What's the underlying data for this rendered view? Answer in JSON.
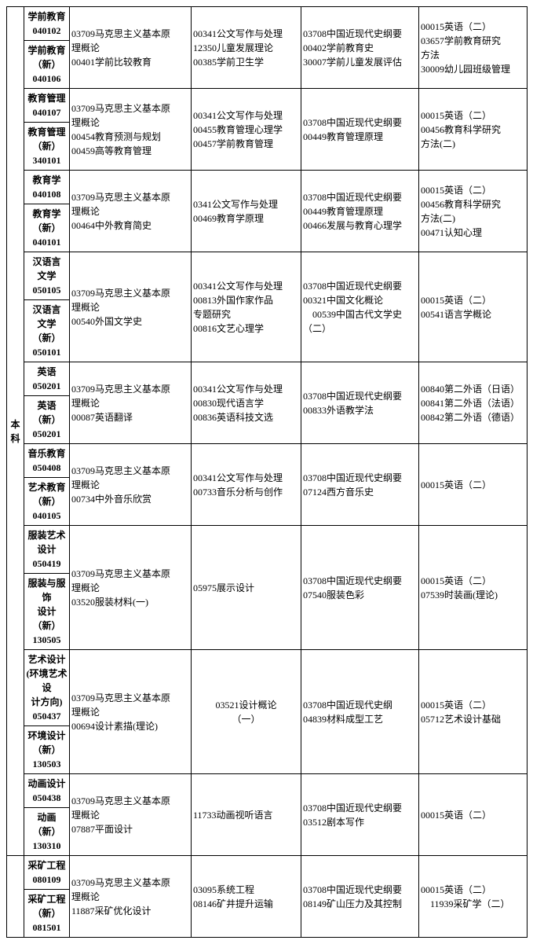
{
  "level1": "本科",
  "rows": [
    {
      "majors": [
        "学前教育\n040102",
        "学前教育\n（新）\n040106"
      ],
      "col2": "03709马克思主义基本原\n理概论\n00401学前比较教育",
      "col3": "00341公文写作与处理\n12350儿童发展理论\n00385学前卫生学",
      "col4": "03708中国近现代史纲要\n00402学前教育史\n30007学前儿童发展评估",
      "col5": "00015英语（二）\n03657学前教育研究\n方法\n30009幼儿园班级管理"
    },
    {
      "majors": [
        "教育管理\n040107",
        "教育管理\n（新）\n340101"
      ],
      "col2": "03709马克思主义基本原\n理概论\n00454教育预测与规划\n00459高等教育管理",
      "col3": "00341公文写作与处理\n00455教育管理心理学\n00457学前教育管理",
      "col4": "03708中国近现代史纲要\n00449教育管理原理",
      "col5": "00015英语（二）\n00456教育科学研究\n方法(二)"
    },
    {
      "majors": [
        "教育学\n040108",
        "教育学\n（新）\n040101"
      ],
      "col2": "03709马克思主义基本原\n理概论\n00464中外教育简史",
      "col3": "0341公文写作与处理\n00469教育学原理",
      "col4": "03708中国近现代史纲要\n00449教育管理原理\n00466发展与教育心理学",
      "col5": "00015英语（二）\n00456教育科学研究\n方法(二)\n00471认知心理"
    },
    {
      "majors": [
        "汉语言\n文学\n050105",
        "汉语言\n文学（新）\n050101"
      ],
      "col2": "03709马克思主义基本原\n理概论\n00540外国文学史",
      "col3": "00341公文写作与处理\n00813外国作家作品\n专题研究\n00816文艺心理学",
      "col4": "03708中国近现代史纲要\n00321中国文化概论\n　00539中国古代文学史（二）",
      "col5": "00015英语（二）\n00541语言学概论"
    },
    {
      "majors": [
        "英语\n050201",
        "英语（新）\n050201"
      ],
      "col2": "03709马克思主义基本原\n理概论\n00087英语翻译",
      "col3": "00341公文写作与处理\n00830现代语言学\n00836英语科技文选",
      "col4": "03708中国近现代史纲要\n00833外语教学法",
      "col5": "00840第二外语（日语）\n00841第二外语（法语）\n00842第二外语（德语）"
    },
    {
      "majors": [
        "音乐教育\n050408",
        "艺术教育\n（新）\n040105"
      ],
      "col2": "03709马克思主义基本原\n理概论\n00734中外音乐欣赏",
      "col3": "00341公文写作与处理\n00733音乐分析与创作",
      "col4": "03708中国近现代史纲要\n07124西方音乐史",
      "col5": "00015英语（二）"
    },
    {
      "majors": [
        "服装艺术\n设计\n050419",
        "服装与服饰\n设计（新）\n130505"
      ],
      "col2": "03709马克思主义基本原\n理概论\n03520服装材料(一)",
      "col3": "05975展示设计",
      "col4": "03708中国近现代史纲要\n07540服装色彩",
      "col5": "00015英语（二）\n07539时装画(理论)"
    },
    {
      "majors": [
        "艺术设计\n(环境艺术设\n计方向)\n050437",
        "环境设计\n（新）\n130503"
      ],
      "col2": "03709马克思主义基本原\n理概论\n00694设计素描(理论)",
      "col3": "03521设计概论\n（一）",
      "col3_center": true,
      "col4": "03708中国近现代史纲\n04839材料成型工艺",
      "col5": "00015英语（二）\n05712艺术设计基础"
    },
    {
      "majors": [
        "动画设计\n050438",
        "动画（新）\n130310"
      ],
      "col2": "03709马克思主义基本原\n理概论\n07887平面设计",
      "col3": "11733动画视听语言",
      "col4": "03708中国近现代史纲要\n03512剧本写作",
      "col5": "00015英语（二）"
    }
  ],
  "group2": {
    "majors": [
      "采矿工程\n080109",
      "采矿工程\n（新）\n081501"
    ],
    "col2": "03709马克思主义基本原\n理概论\n11887采矿优化设计",
    "col3": "03095系统工程\n08146矿井提升运输",
    "col4": "03708中国近现代史纲要\n08149矿山压力及其控制",
    "col5": "00015英语（二）\n　11939采矿学（二）"
  }
}
